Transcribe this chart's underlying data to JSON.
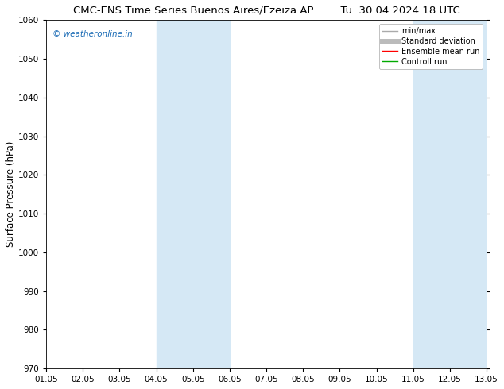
{
  "title_left": "CMC-ENS Time Series Buenos Aires/Ezeiza AP",
  "title_right": "Tu. 30.04.2024 18 UTC",
  "ylabel": "Surface Pressure (hPa)",
  "ylim": [
    970,
    1060
  ],
  "yticks": [
    970,
    980,
    990,
    1000,
    1010,
    1020,
    1030,
    1040,
    1050,
    1060
  ],
  "xlim": [
    0,
    12
  ],
  "xtick_labels": [
    "01.05",
    "02.05",
    "03.05",
    "04.05",
    "05.05",
    "06.05",
    "07.05",
    "08.05",
    "09.05",
    "10.05",
    "11.05",
    "12.05",
    "13.05"
  ],
  "shaded_bands": [
    {
      "xmin": 3,
      "xmax": 4,
      "color": "#daeaf7"
    },
    {
      "xmin": 4,
      "xmax": 5,
      "color": "#cce0f5"
    },
    {
      "xmin": 10,
      "xmax": 11,
      "color": "#daeaf7"
    },
    {
      "xmin": 11,
      "xmax": 12,
      "color": "#cce0f5"
    }
  ],
  "watermark": "© weatheronline.in",
  "watermark_color": "#1a6bb5",
  "legend_items": [
    {
      "label": "min/max",
      "color": "#aaaaaa",
      "lw": 1.0
    },
    {
      "label": "Standard deviation",
      "color": "#bbbbbb",
      "lw": 5.0
    },
    {
      "label": "Ensemble mean run",
      "color": "#ff0000",
      "lw": 1.0
    },
    {
      "label": "Controll run",
      "color": "#00aa00",
      "lw": 1.0
    }
  ],
  "bg_color": "#ffffff",
  "axes_bg": "#ffffff",
  "title_fontsize": 9.5,
  "ylabel_fontsize": 8.5,
  "tick_fontsize": 7.5,
  "watermark_fontsize": 7.5,
  "legend_fontsize": 7.0
}
